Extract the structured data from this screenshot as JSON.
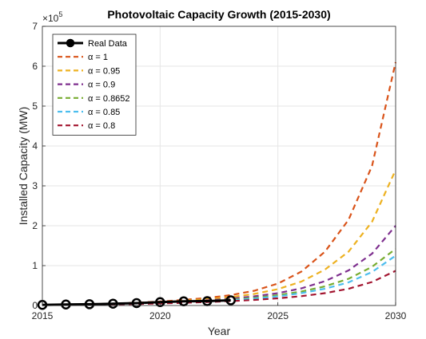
{
  "chart_data": {
    "type": "line",
    "title": "Photovoltaic Capacity Growth (2015-2030)",
    "xlabel": "Year",
    "ylabel": "Installed Capacity (MW)",
    "y_exponent_label": "×10",
    "y_exponent_power": "5",
    "y_scale": 100000,
    "xlim": [
      2015,
      2030
    ],
    "ylim": [
      0,
      700000
    ],
    "x_ticks": [
      2015,
      2020,
      2025,
      2030
    ],
    "y_ticks": [
      0,
      100000,
      200000,
      300000,
      400000,
      500000,
      600000,
      700000
    ],
    "y_tick_labels": [
      "0",
      "1",
      "2",
      "3",
      "4",
      "5",
      "6",
      "7"
    ],
    "grid": true,
    "legend_position": "top-left",
    "real_data": {
      "name": "Real Data",
      "color": "#000000",
      "x": [
        2015,
        2016,
        2017,
        2018,
        2019,
        2020,
        2021,
        2022,
        2023
      ],
      "y": [
        1500,
        2500,
        3200,
        4500,
        6000,
        8500,
        10500,
        11000,
        13000
      ]
    },
    "series": [
      {
        "name": "α = 1",
        "color": "#D95319",
        "x": [
          2015,
          2016,
          2017,
          2018,
          2019,
          2020,
          2021,
          2022,
          2023,
          2024,
          2025,
          2026,
          2027,
          2028,
          2029,
          2030
        ],
        "y": [
          1500,
          2200,
          3300,
          4800,
          7000,
          10000,
          14000,
          19000,
          26000,
          37000,
          55000,
          85000,
          135000,
          215000,
          350000,
          610000
        ]
      },
      {
        "name": "α = 0.95",
        "color": "#EDB120",
        "x": [
          2015,
          2016,
          2017,
          2018,
          2019,
          2020,
          2021,
          2022,
          2023,
          2024,
          2025,
          2026,
          2027,
          2028,
          2029,
          2030
        ],
        "y": [
          1500,
          2100,
          3000,
          4200,
          6000,
          8500,
          12000,
          16000,
          21000,
          29000,
          41000,
          60000,
          90000,
          135000,
          210000,
          340000
        ]
      },
      {
        "name": "α = 0.9",
        "color": "#7E2F8E",
        "x": [
          2015,
          2016,
          2017,
          2018,
          2019,
          2020,
          2021,
          2022,
          2023,
          2024,
          2025,
          2026,
          2027,
          2028,
          2029,
          2030
        ],
        "y": [
          1500,
          2000,
          2800,
          3800,
          5200,
          7200,
          10000,
          13000,
          17000,
          23000,
          31000,
          43000,
          61000,
          88000,
          130000,
          200000
        ]
      },
      {
        "name": "α = 0.8652",
        "color": "#77AC30",
        "x": [
          2015,
          2016,
          2017,
          2018,
          2019,
          2020,
          2021,
          2022,
          2023,
          2024,
          2025,
          2026,
          2027,
          2028,
          2029,
          2030
        ],
        "y": [
          1500,
          1900,
          2600,
          3500,
          4700,
          6400,
          8700,
          11500,
          15000,
          19500,
          26000,
          35000,
          48000,
          67000,
          97000,
          142000
        ]
      },
      {
        "name": "α = 0.85",
        "color": "#4DBEEE",
        "x": [
          2015,
          2016,
          2017,
          2018,
          2019,
          2020,
          2021,
          2022,
          2023,
          2024,
          2025,
          2026,
          2027,
          2028,
          2029,
          2030
        ],
        "y": [
          1500,
          1900,
          2500,
          3300,
          4400,
          6000,
          8000,
          10500,
          13500,
          17500,
          23000,
          31000,
          42000,
          58000,
          84000,
          125000
        ]
      },
      {
        "name": "α = 0.8",
        "color": "#A2142F",
        "x": [
          2015,
          2016,
          2017,
          2018,
          2019,
          2020,
          2021,
          2022,
          2023,
          2024,
          2025,
          2026,
          2027,
          2028,
          2029,
          2030
        ],
        "y": [
          1500,
          1800,
          2300,
          3000,
          3900,
          5100,
          6700,
          8600,
          11000,
          14000,
          18000,
          23500,
          31000,
          42000,
          59000,
          87000
        ]
      }
    ]
  }
}
